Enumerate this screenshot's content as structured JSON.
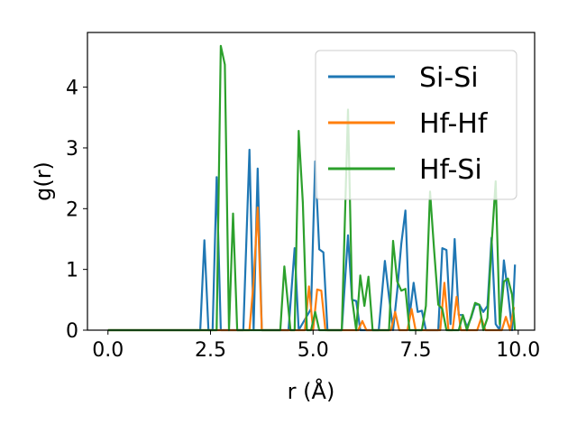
{
  "chart_data": {
    "type": "line",
    "title": "",
    "xlabel": "r (Å)",
    "ylabel": "g(r)",
    "xlim": [
      -0.5,
      10.4
    ],
    "ylim": [
      0,
      4.9
    ],
    "xticks": [
      0.0,
      2.5,
      5.0,
      7.5,
      10.0
    ],
    "xtick_labels": [
      "0.0",
      "2.5",
      "5.0",
      "7.5",
      "10.0"
    ],
    "yticks": [
      0,
      1,
      2,
      3,
      4
    ],
    "ytick_labels": [
      "0",
      "1",
      "2",
      "3",
      "4"
    ],
    "legend_position": "top-right",
    "series": [
      {
        "name": "Si-Si",
        "color": "#1f77b4",
        "points": [
          [
            0.0,
            0
          ],
          [
            2.25,
            0
          ],
          [
            2.35,
            1.48
          ],
          [
            2.45,
            0
          ],
          [
            2.55,
            0
          ],
          [
            2.65,
            2.52
          ],
          [
            2.75,
            0
          ],
          [
            3.3,
            0
          ],
          [
            3.45,
            2.97
          ],
          [
            3.55,
            0
          ],
          [
            3.65,
            2.66
          ],
          [
            3.75,
            0
          ],
          [
            4.4,
            0
          ],
          [
            4.55,
            1.35
          ],
          [
            4.65,
            0
          ],
          [
            4.95,
            0.35
          ],
          [
            5.05,
            2.78
          ],
          [
            5.15,
            1.33
          ],
          [
            5.25,
            1.28
          ],
          [
            5.35,
            0
          ],
          [
            5.7,
            0
          ],
          [
            5.85,
            1.56
          ],
          [
            5.95,
            0.5
          ],
          [
            6.05,
            0.48
          ],
          [
            6.15,
            0
          ],
          [
            6.5,
            0
          ],
          [
            6.6,
            0
          ],
          [
            6.75,
            1.14
          ],
          [
            6.85,
            0.55
          ],
          [
            6.95,
            0
          ],
          [
            7.05,
            0.65
          ],
          [
            7.15,
            1.42
          ],
          [
            7.25,
            1.97
          ],
          [
            7.35,
            0.22
          ],
          [
            7.45,
            0.78
          ],
          [
            7.55,
            0.3
          ],
          [
            7.65,
            0.32
          ],
          [
            7.75,
            0
          ],
          [
            8.05,
            0
          ],
          [
            8.15,
            1.35
          ],
          [
            8.25,
            1.32
          ],
          [
            8.35,
            0.1
          ],
          [
            8.45,
            1.5
          ],
          [
            8.55,
            0.25
          ],
          [
            8.65,
            0.25
          ],
          [
            8.75,
            0.05
          ],
          [
            8.85,
            0.2
          ],
          [
            8.95,
            0.42
          ],
          [
            9.05,
            0.42
          ],
          [
            9.15,
            0.3
          ],
          [
            9.25,
            0.4
          ],
          [
            9.35,
            1.52
          ],
          [
            9.45,
            0.1
          ],
          [
            9.55,
            0
          ],
          [
            9.65,
            1.15
          ],
          [
            9.75,
            0.62
          ],
          [
            9.85,
            0
          ],
          [
            9.92,
            1.08
          ]
        ]
      },
      {
        "name": "Hf-Hf",
        "color": "#ff7f0e",
        "points": [
          [
            0.0,
            0
          ],
          [
            3.45,
            0
          ],
          [
            3.55,
            0.8
          ],
          [
            3.65,
            2.02
          ],
          [
            3.75,
            0
          ],
          [
            4.8,
            0
          ],
          [
            4.9,
            0.72
          ],
          [
            5.0,
            0
          ],
          [
            5.1,
            0.67
          ],
          [
            5.2,
            0.65
          ],
          [
            5.3,
            0
          ],
          [
            6.1,
            0
          ],
          [
            6.2,
            0.15
          ],
          [
            6.3,
            0
          ],
          [
            6.9,
            0
          ],
          [
            7.0,
            0.3
          ],
          [
            7.1,
            0
          ],
          [
            7.3,
            0
          ],
          [
            7.4,
            0.35
          ],
          [
            7.5,
            0
          ],
          [
            8.1,
            0
          ],
          [
            8.2,
            0.78
          ],
          [
            8.3,
            0
          ],
          [
            8.4,
            0
          ],
          [
            8.5,
            0.55
          ],
          [
            8.6,
            0
          ],
          [
            9.0,
            0
          ],
          [
            9.1,
            0.2
          ],
          [
            9.2,
            0
          ],
          [
            9.6,
            0
          ],
          [
            9.7,
            0.22
          ],
          [
            9.8,
            0
          ],
          [
            9.9,
            0.38
          ]
        ]
      },
      {
        "name": "Hf-Si",
        "color": "#2ca02c",
        "points": [
          [
            0.0,
            0
          ],
          [
            2.55,
            0
          ],
          [
            2.65,
            0
          ],
          [
            2.75,
            4.68
          ],
          [
            2.85,
            4.37
          ],
          [
            2.95,
            0
          ],
          [
            3.05,
            1.92
          ],
          [
            3.15,
            0
          ],
          [
            4.2,
            0
          ],
          [
            4.3,
            1.05
          ],
          [
            4.45,
            0
          ],
          [
            4.55,
            0
          ],
          [
            4.65,
            3.28
          ],
          [
            4.75,
            2.1
          ],
          [
            4.85,
            0
          ],
          [
            4.95,
            0
          ],
          [
            5.05,
            0.3
          ],
          [
            5.15,
            0
          ],
          [
            5.7,
            0
          ],
          [
            5.85,
            3.63
          ],
          [
            5.95,
            0.52
          ],
          [
            6.05,
            0
          ],
          [
            6.15,
            0.9
          ],
          [
            6.25,
            0.4
          ],
          [
            6.35,
            0.88
          ],
          [
            6.45,
            0
          ],
          [
            6.85,
            0
          ],
          [
            6.95,
            1.47
          ],
          [
            7.05,
            0.8
          ],
          [
            7.15,
            0.65
          ],
          [
            7.25,
            0.68
          ],
          [
            7.35,
            0
          ],
          [
            7.65,
            0
          ],
          [
            7.75,
            0.4
          ],
          [
            7.85,
            2.28
          ],
          [
            7.95,
            1.32
          ],
          [
            8.05,
            0.42
          ],
          [
            8.15,
            0.35
          ],
          [
            8.25,
            0
          ],
          [
            8.55,
            0
          ],
          [
            8.65,
            0.25
          ],
          [
            8.75,
            0
          ],
          [
            8.85,
            0.22
          ],
          [
            8.95,
            0.45
          ],
          [
            9.05,
            0.42
          ],
          [
            9.15,
            0
          ],
          [
            9.25,
            0.2
          ],
          [
            9.35,
            1.4
          ],
          [
            9.45,
            2.45
          ],
          [
            9.55,
            0.1
          ],
          [
            9.65,
            0.8
          ],
          [
            9.75,
            0.85
          ],
          [
            9.85,
            0.58
          ],
          [
            9.92,
            0
          ]
        ]
      }
    ]
  }
}
